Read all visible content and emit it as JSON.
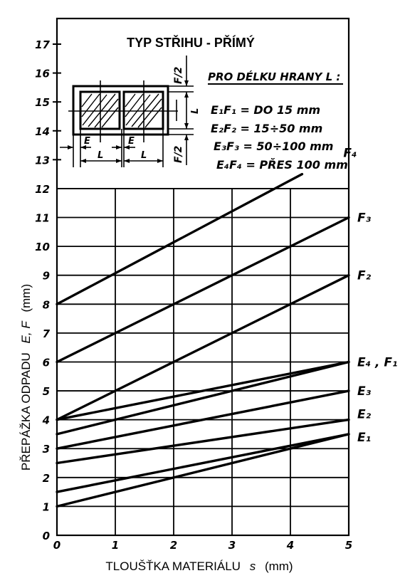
{
  "chart_data": {
    "type": "line",
    "title": "TYP STŘIHU - PŘÍMÝ",
    "xlabel": "TLOUŠŤKA MATERIÁLU",
    "xlabel_symbol": "s",
    "xlabel_unit": "(mm)",
    "ylabel": "PŘEPÁŽKA ODPADU",
    "ylabel_symbol": "E, F",
    "ylabel_unit": "(mm)",
    "xlim": [
      0,
      5
    ],
    "ylim": [
      0,
      17
    ],
    "grid_lines_y_max": 12,
    "grid": true,
    "x_ticks": [
      "0",
      "1",
      "2",
      "3",
      "4",
      "5"
    ],
    "y_ticks": [
      "1",
      "2",
      "3",
      "4",
      "5",
      "6",
      "7",
      "8",
      "9",
      "10",
      "11",
      "12",
      "13",
      "14",
      "15",
      "16",
      "17"
    ],
    "series": [
      {
        "name": "F₄",
        "points": [
          [
            0,
            8.0
          ],
          [
            4.2,
            12.5
          ]
        ]
      },
      {
        "name": "F₃",
        "points": [
          [
            0,
            6.0
          ],
          [
            5,
            11.0
          ]
        ]
      },
      {
        "name": "F₂",
        "points": [
          [
            0,
            4.0
          ],
          [
            5,
            9.0
          ]
        ]
      },
      {
        "name": "E₄ , F₁",
        "points": [
          [
            0,
            3.5
          ],
          [
            5,
            6.0
          ]
        ]
      },
      {
        "name": "",
        "points": [
          [
            0,
            4.0
          ],
          [
            5,
            6.0
          ]
        ]
      },
      {
        "name": "E₃",
        "points": [
          [
            0,
            3.0
          ],
          [
            5,
            5.0
          ]
        ]
      },
      {
        "name": "E₂",
        "points": [
          [
            0,
            2.5
          ],
          [
            5,
            4.0
          ]
        ]
      },
      {
        "name": "E₁",
        "points": [
          [
            0,
            1.5
          ],
          [
            5,
            3.5
          ]
        ]
      },
      {
        "name": "",
        "points": [
          [
            0,
            1.0
          ],
          [
            5,
            3.5
          ]
        ]
      }
    ],
    "legend": {
      "heading": "PRO DÉLKU HRANY L :",
      "entries": [
        "E₁F₁ = DO 15 mm",
        "E₂F₂ = 15÷50 mm",
        "E₃F₃ = 50÷100 mm",
        "E₄F₄ = PŘES 100 mm"
      ]
    },
    "diagram_labels": {
      "e": "E",
      "l": "L",
      "f_half": "F/2"
    }
  }
}
